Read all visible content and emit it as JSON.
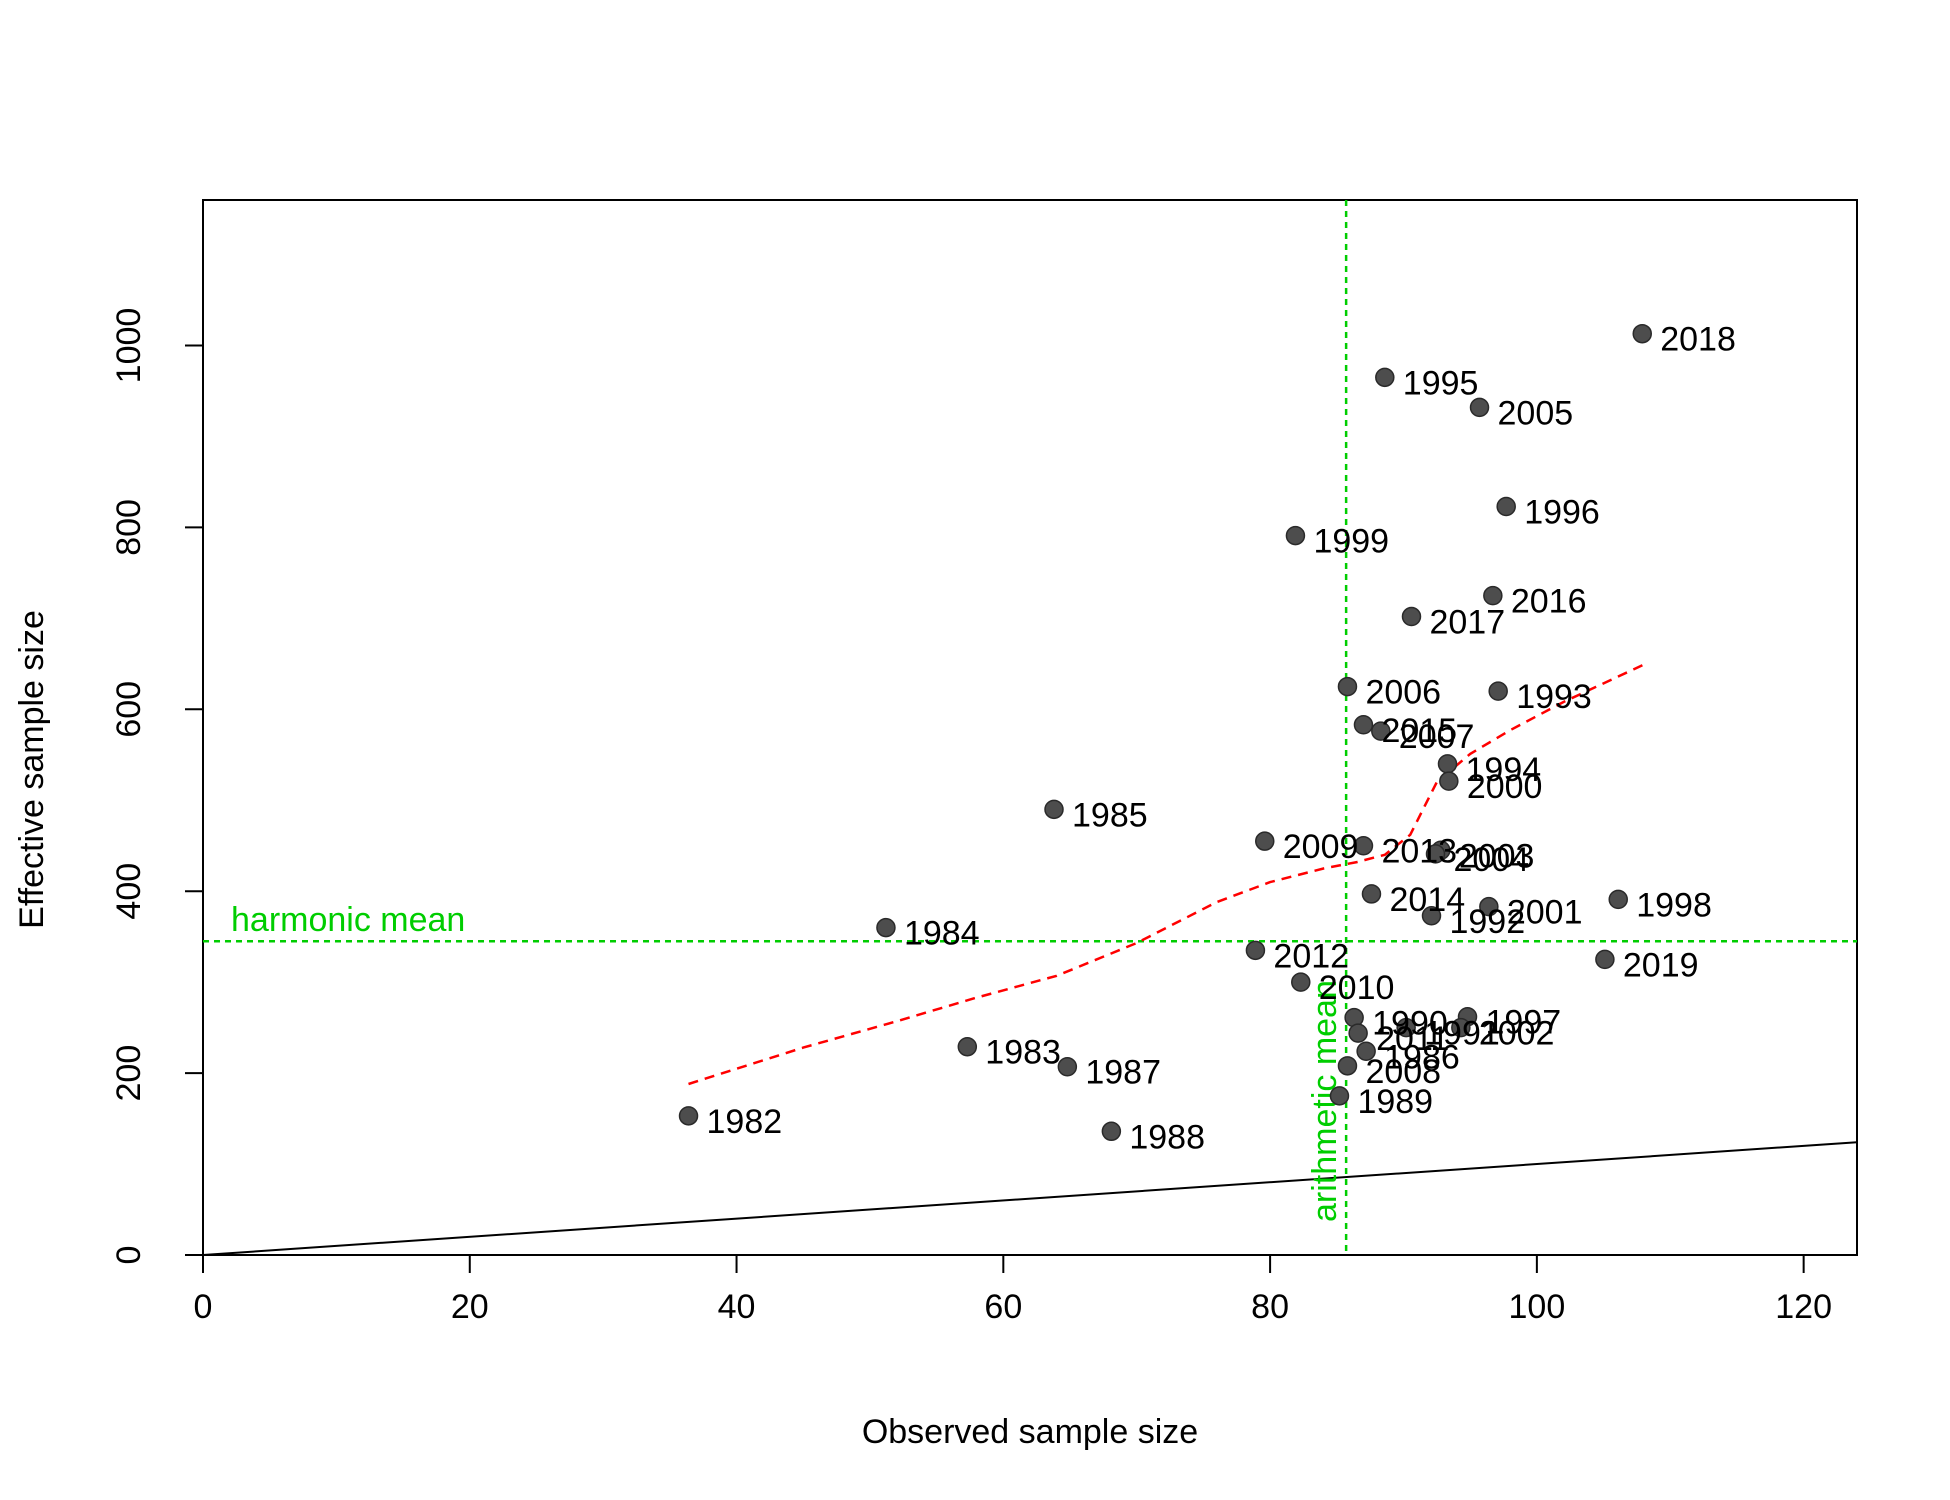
{
  "chart_data": {
    "type": "scatter",
    "title": "",
    "xlabel": "Observed sample size",
    "ylabel": "Effective sample size",
    "xlim": [
      0,
      124
    ],
    "ylim": [
      0,
      1160
    ],
    "xticks": [
      "0",
      "20",
      "40",
      "60",
      "80",
      "100",
      "120"
    ],
    "yticks": [
      "0",
      "200",
      "400",
      "600",
      "800",
      "1000"
    ],
    "grid": false,
    "legend": "none",
    "point_color": "#4d4d4d",
    "points": [
      {
        "label": "1982",
        "x": 36.4,
        "y": 153
      },
      {
        "label": "1983",
        "x": 57.3,
        "y": 229
      },
      {
        "label": "1984",
        "x": 51.2,
        "y": 360
      },
      {
        "label": "1985",
        "x": 63.8,
        "y": 490
      },
      {
        "label": "1986",
        "x": 87.2,
        "y": 224
      },
      {
        "label": "1987",
        "x": 64.8,
        "y": 207
      },
      {
        "label": "1988",
        "x": 68.1,
        "y": 136
      },
      {
        "label": "1989",
        "x": 85.2,
        "y": 175
      },
      {
        "label": "1990",
        "x": 86.3,
        "y": 261
      },
      {
        "label": "1991",
        "x": 90.2,
        "y": 250
      },
      {
        "label": "1992",
        "x": 92.1,
        "y": 373
      },
      {
        "label": "1993",
        "x": 97.1,
        "y": 620
      },
      {
        "label": "1994",
        "x": 93.3,
        "y": 540
      },
      {
        "label": "1995",
        "x": 88.6,
        "y": 965
      },
      {
        "label": "1996",
        "x": 97.7,
        "y": 823
      },
      {
        "label": "1997",
        "x": 94.8,
        "y": 262
      },
      {
        "label": "1998",
        "x": 106.1,
        "y": 391
      },
      {
        "label": "1999",
        "x": 81.9,
        "y": 791
      },
      {
        "label": "2000",
        "x": 93.4,
        "y": 521
      },
      {
        "label": "2001",
        "x": 96.4,
        "y": 383
      },
      {
        "label": "2002",
        "x": 94.3,
        "y": 250
      },
      {
        "label": "2003",
        "x": 92.8,
        "y": 445
      },
      {
        "label": "2004",
        "x": 92.4,
        "y": 441
      },
      {
        "label": "2005",
        "x": 95.7,
        "y": 932
      },
      {
        "label": "2006",
        "x": 85.8,
        "y": 625
      },
      {
        "label": "2007",
        "x": 88.3,
        "y": 576
      },
      {
        "label": "2008",
        "x": 85.8,
        "y": 208
      },
      {
        "label": "2009",
        "x": 79.6,
        "y": 455
      },
      {
        "label": "2010",
        "x": 82.3,
        "y": 300
      },
      {
        "label": "2011",
        "x": 86.6,
        "y": 244
      },
      {
        "label": "2012",
        "x": 78.9,
        "y": 335
      },
      {
        "label": "2013",
        "x": 87.0,
        "y": 450
      },
      {
        "label": "2014",
        "x": 87.6,
        "y": 397
      },
      {
        "label": "2015",
        "x": 87.0,
        "y": 583
      },
      {
        "label": "2016",
        "x": 96.7,
        "y": 725
      },
      {
        "label": "2017",
        "x": 90.6,
        "y": 702
      },
      {
        "label": "2018",
        "x": 107.9,
        "y": 1013
      },
      {
        "label": "2019",
        "x": 105.1,
        "y": 325
      }
    ],
    "identity_line": {
      "x": [
        0,
        124
      ],
      "y": [
        0,
        124
      ],
      "color": "#000000"
    },
    "smoother": {
      "color": "#ff0000",
      "x": [
        36.4,
        45,
        52,
        58,
        64,
        70,
        76,
        80,
        84,
        86.5,
        88.6,
        90.5,
        92.5,
        95,
        98,
        102,
        108
      ],
      "y": [
        188,
        228,
        257,
        283,
        307,
        343,
        388,
        410,
        425,
        432,
        440,
        462,
        520,
        551,
        577,
        608,
        649
      ]
    },
    "harmonic_mean": {
      "label": "harmonic mean",
      "value": 345,
      "color": "#00cd00"
    },
    "arithmetic_mean": {
      "label": "arithmetic mean",
      "value": 85.7,
      "color": "#00cd00"
    }
  }
}
